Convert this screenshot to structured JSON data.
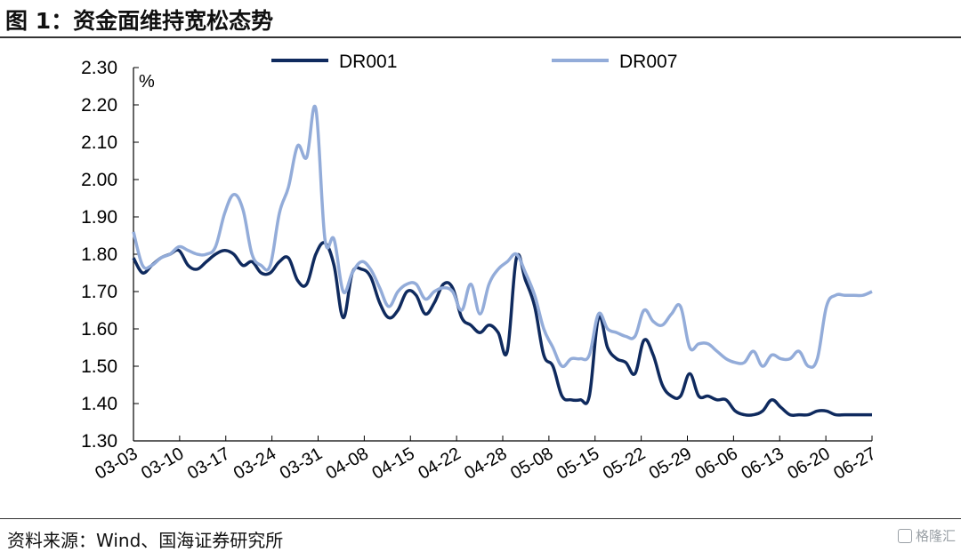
{
  "title": "图 1：资金面维持宽松态势",
  "source": "资料来源：Wind、国海证券研究所",
  "watermark": "格隆汇",
  "chart_data": {
    "type": "line",
    "unit": "%",
    "ylim": [
      1.3,
      2.3
    ],
    "yticks": [
      "1.30",
      "1.40",
      "1.50",
      "1.60",
      "1.70",
      "1.80",
      "1.90",
      "2.00",
      "2.10",
      "2.20",
      "2.30"
    ],
    "xticks": [
      "03-03",
      "03-10",
      "03-17",
      "03-24",
      "03-31",
      "04-08",
      "04-15",
      "04-22",
      "04-28",
      "05-08",
      "05-15",
      "05-22",
      "05-29",
      "06-06",
      "06-13",
      "06-20",
      "06-27"
    ],
    "legend_position": "top",
    "grid": false,
    "series": [
      {
        "name": "DR001",
        "color": "#0f2a5e",
        "values": [
          1.79,
          1.75,
          1.77,
          1.79,
          1.8,
          1.81,
          1.77,
          1.76,
          1.78,
          1.8,
          1.81,
          1.8,
          1.77,
          1.78,
          1.75,
          1.75,
          1.78,
          1.79,
          1.73,
          1.72,
          1.8,
          1.83,
          1.77,
          1.63,
          1.75,
          1.76,
          1.74,
          1.67,
          1.63,
          1.65,
          1.7,
          1.69,
          1.64,
          1.67,
          1.72,
          1.71,
          1.63,
          1.61,
          1.59,
          1.61,
          1.59,
          1.54,
          1.79,
          1.73,
          1.66,
          1.53,
          1.5,
          1.42,
          1.41,
          1.41,
          1.42,
          1.63,
          1.55,
          1.52,
          1.51,
          1.48,
          1.57,
          1.53,
          1.45,
          1.42,
          1.42,
          1.48,
          1.42,
          1.42,
          1.41,
          1.41,
          1.38,
          1.37,
          1.37,
          1.38,
          1.41,
          1.39,
          1.37,
          1.37,
          1.37,
          1.38,
          1.38,
          1.37,
          1.37,
          1.37,
          1.37,
          1.37
        ]
      },
      {
        "name": "DR007",
        "color": "#93acd9",
        "values": [
          1.86,
          1.77,
          1.77,
          1.79,
          1.8,
          1.82,
          1.81,
          1.8,
          1.8,
          1.82,
          1.91,
          1.96,
          1.92,
          1.8,
          1.77,
          1.77,
          1.91,
          1.98,
          2.09,
          2.06,
          2.19,
          1.84,
          1.84,
          1.7,
          1.75,
          1.78,
          1.76,
          1.71,
          1.66,
          1.7,
          1.72,
          1.72,
          1.68,
          1.7,
          1.71,
          1.7,
          1.65,
          1.72,
          1.64,
          1.72,
          1.76,
          1.78,
          1.8,
          1.75,
          1.69,
          1.6,
          1.55,
          1.5,
          1.52,
          1.52,
          1.53,
          1.64,
          1.6,
          1.59,
          1.58,
          1.58,
          1.65,
          1.62,
          1.61,
          1.64,
          1.66,
          1.55,
          1.56,
          1.56,
          1.54,
          1.52,
          1.51,
          1.51,
          1.54,
          1.5,
          1.53,
          1.52,
          1.52,
          1.54,
          1.5,
          1.52,
          1.66,
          1.69,
          1.69,
          1.69,
          1.69,
          1.7
        ]
      }
    ]
  }
}
